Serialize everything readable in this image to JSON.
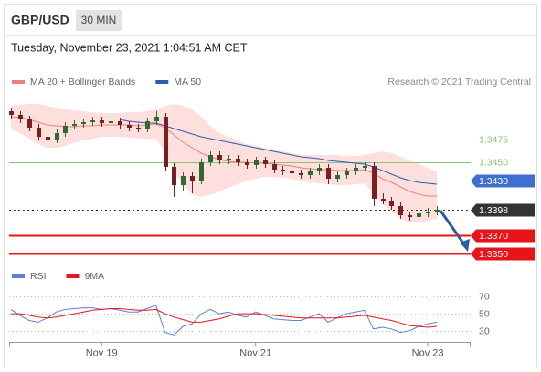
{
  "header": {
    "symbol": "GBP/USD",
    "interval": "30 MIN",
    "timestamp": "Tuesday, November 23, 2021 1:04:51 AM CET"
  },
  "chart_data": [
    {
      "type": "candlestick",
      "credit": "Research © 2021 Trading Central",
      "xlim": [
        0,
        47
      ],
      "ylim": [
        1.3343,
        1.3518
      ],
      "up_color": "#2f6b2f",
      "down_color": "#7a1f1f",
      "open": [
        1.3506,
        1.3502,
        1.3497,
        1.3488,
        1.3478,
        1.3475,
        1.3482,
        1.349,
        1.3492,
        1.3494,
        1.3496,
        1.3493,
        1.3495,
        1.3491,
        1.3488,
        1.3487,
        1.3495,
        1.35,
        1.3445,
        1.3425,
        1.3435,
        1.343,
        1.345,
        1.3458,
        1.3452,
        1.3454,
        1.345,
        1.3447,
        1.3452,
        1.3448,
        1.3442,
        1.344,
        1.3438,
        1.3436,
        1.344,
        1.3444,
        1.3432,
        1.3436,
        1.344,
        1.3444,
        1.3446,
        1.341,
        1.3408,
        1.3402,
        1.3392,
        1.339,
        1.3394,
        1.3396
      ],
      "high": [
        1.351,
        1.3506,
        1.3501,
        1.3492,
        1.3482,
        1.3486,
        1.3494,
        1.3496,
        1.3498,
        1.35,
        1.35,
        1.3499,
        1.3499,
        1.3495,
        1.3492,
        1.3499,
        1.3506,
        1.3504,
        1.3449,
        1.3439,
        1.3439,
        1.3454,
        1.3462,
        1.3462,
        1.3458,
        1.3458,
        1.3454,
        1.3456,
        1.3456,
        1.3452,
        1.3446,
        1.3444,
        1.3442,
        1.3444,
        1.3448,
        1.3448,
        1.344,
        1.3444,
        1.3448,
        1.345,
        1.345,
        1.3416,
        1.3412,
        1.3406,
        1.3396,
        1.3398,
        1.34,
        1.3402
      ],
      "low": [
        1.3498,
        1.3493,
        1.3484,
        1.3474,
        1.3471,
        1.3471,
        1.3478,
        1.3486,
        1.3488,
        1.349,
        1.3489,
        1.3489,
        1.3487,
        1.3484,
        1.3483,
        1.3483,
        1.3491,
        1.3441,
        1.3412,
        1.3418,
        1.3416,
        1.3426,
        1.3446,
        1.3448,
        1.3448,
        1.3446,
        1.3443,
        1.3443,
        1.3444,
        1.3438,
        1.3436,
        1.3434,
        1.3432,
        1.3432,
        1.3436,
        1.3426,
        1.3428,
        1.3432,
        1.3436,
        1.344,
        1.3402,
        1.3404,
        1.3398,
        1.3388,
        1.3386,
        1.3386,
        1.339,
        1.3392
      ],
      "close": [
        1.3502,
        1.3497,
        1.3488,
        1.3478,
        1.3475,
        1.3482,
        1.349,
        1.3492,
        1.3494,
        1.3496,
        1.3493,
        1.3495,
        1.3491,
        1.3488,
        1.3487,
        1.3495,
        1.35,
        1.3445,
        1.3425,
        1.3435,
        1.343,
        1.345,
        1.3458,
        1.3452,
        1.3454,
        1.345,
        1.3447,
        1.3452,
        1.3448,
        1.3442,
        1.344,
        1.3438,
        1.3436,
        1.344,
        1.3444,
        1.3432,
        1.3436,
        1.344,
        1.3444,
        1.3446,
        1.341,
        1.3408,
        1.3402,
        1.3392,
        1.339,
        1.3394,
        1.3396,
        1.3398
      ],
      "series": [
        {
          "name": "MA 20 + Bollinger Bands",
          "color": "#f08080",
          "band_color": "#fde0dd",
          "values": [
            1.35,
            1.3499,
            1.3497,
            1.3494,
            1.3491,
            1.349,
            1.3489,
            1.3489,
            1.349,
            1.349,
            1.3491,
            1.3491,
            1.3491,
            1.3491,
            1.349,
            1.3491,
            1.3492,
            1.3488,
            1.348,
            1.3472,
            1.3466,
            1.346,
            1.3456,
            1.3453,
            1.3451,
            1.345,
            1.345,
            1.3449,
            1.3449,
            1.3448,
            1.3447,
            1.3446,
            1.3444,
            1.3443,
            1.3442,
            1.3442,
            1.3441,
            1.3441,
            1.3441,
            1.3442,
            1.3438,
            1.3432,
            1.3428,
            1.3423,
            1.3418,
            1.3415,
            1.3413,
            1.3413
          ],
          "upper": [
            1.3512,
            1.3513,
            1.3514,
            1.3514,
            1.3512,
            1.351,
            1.3508,
            1.3507,
            1.3506,
            1.3505,
            1.3504,
            1.3504,
            1.3504,
            1.3505,
            1.3505,
            1.3506,
            1.3508,
            1.3512,
            1.3514,
            1.3512,
            1.3508,
            1.35,
            1.349,
            1.3482,
            1.3478,
            1.3474,
            1.347,
            1.3468,
            1.3466,
            1.3464,
            1.3462,
            1.346,
            1.3458,
            1.3458,
            1.3458,
            1.3458,
            1.3458,
            1.3457,
            1.3457,
            1.3458,
            1.346,
            1.3462,
            1.346,
            1.3456,
            1.3452,
            1.3448,
            1.3444,
            1.344
          ],
          "lower": [
            1.3486,
            1.3482,
            1.3476,
            1.347,
            1.3466,
            1.3466,
            1.3468,
            1.3471,
            1.3474,
            1.3476,
            1.3478,
            1.3478,
            1.3478,
            1.3477,
            1.3476,
            1.3476,
            1.3476,
            1.3462,
            1.344,
            1.3425,
            1.3415,
            1.3412,
            1.3414,
            1.3418,
            1.3422,
            1.3426,
            1.343,
            1.3432,
            1.3434,
            1.3434,
            1.3433,
            1.3432,
            1.343,
            1.3428,
            1.3427,
            1.3426,
            1.3425,
            1.3425,
            1.3426,
            1.3427,
            1.3416,
            1.3405,
            1.3396,
            1.3388,
            1.3384,
            1.3384,
            1.3386,
            1.3388
          ]
        },
        {
          "name": "MA 50",
          "color": "#2a5db0",
          "values": [
            null,
            null,
            null,
            null,
            null,
            null,
            null,
            null,
            null,
            null,
            null,
            null,
            1.3497,
            1.3495,
            1.3494,
            1.3493,
            1.3493,
            1.349,
            1.3487,
            1.3484,
            1.3481,
            1.3478,
            1.3476,
            1.3474,
            1.3472,
            1.347,
            1.3468,
            1.3466,
            1.3464,
            1.3462,
            1.346,
            1.3458,
            1.3456,
            1.3455,
            1.3454,
            1.3452,
            1.3451,
            1.345,
            1.3449,
            1.3448,
            1.3445,
            1.3441,
            1.3437,
            1.3433,
            1.343,
            1.3428,
            1.3427,
            1.3426
          ]
        }
      ],
      "levels": [
        {
          "value": 1.3475,
          "color": "#8dc26f",
          "style": "text"
        },
        {
          "value": 1.345,
          "label": "1.3450",
          "color": "#8dc26f",
          "style": "text"
        },
        {
          "value": 1.343,
          "label": "1.3430",
          "color": "#3f6fd1",
          "style": "box"
        },
        {
          "value": 1.3398,
          "color": "#333333",
          "style": "box",
          "dashed": true
        },
        {
          "value": 1.337,
          "label": "1.3370",
          "color": "#e8141a",
          "style": "box"
        },
        {
          "value": 1.335,
          "label": "1.3350",
          "color": "#e8141a",
          "style": "box"
        }
      ]
    },
    {
      "type": "line",
      "xlim": [
        0,
        47
      ],
      "ylim": [
        20,
        78
      ],
      "yticks": [
        30,
        50,
        70
      ],
      "xticks": [
        {
          "value": 10,
          "label": "Nov 19"
        },
        {
          "value": 27,
          "label": "Nov 21"
        },
        {
          "value": 46,
          "label": "Nov 23"
        }
      ],
      "series": [
        {
          "name": "RSI",
          "color": "#5b7fe0",
          "values": [
            55,
            48,
            42,
            40,
            45,
            52,
            55,
            56,
            57,
            57,
            55,
            56,
            54,
            52,
            52,
            56,
            60,
            28,
            25,
            35,
            38,
            50,
            55,
            50,
            52,
            48,
            46,
            52,
            48,
            44,
            43,
            42,
            42,
            46,
            50,
            40,
            45,
            50,
            52,
            54,
            32,
            34,
            32,
            28,
            30,
            35,
            38,
            40
          ]
        },
        {
          "name": "9MA",
          "color": "#e8141a",
          "values": [
            50,
            50,
            48,
            46,
            45,
            46,
            48,
            50,
            52,
            54,
            55,
            56,
            56,
            55,
            54,
            54,
            55,
            50,
            46,
            43,
            40,
            40,
            42,
            44,
            47,
            50,
            50,
            50,
            49,
            48,
            47,
            46,
            45,
            45,
            45,
            45,
            45,
            46,
            47,
            48,
            46,
            44,
            42,
            39,
            36,
            35,
            34,
            35
          ]
        }
      ]
    }
  ]
}
